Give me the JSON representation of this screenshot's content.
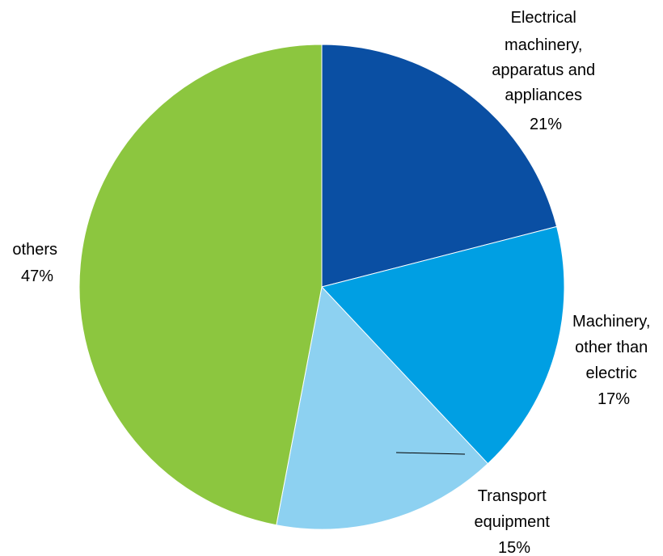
{
  "chart_data": {
    "type": "pie",
    "title": "",
    "start_angle_deg": 0,
    "direction": "clockwise",
    "slices": [
      {
        "label": [
          "Electrical",
          "machinery,",
          "apparatus and",
          "appliances"
        ],
        "value": 21,
        "value_label": "21%",
        "color": "#0A4FA3"
      },
      {
        "label": [
          "Machinery,",
          "other than",
          "electric"
        ],
        "value": 17,
        "value_label": "17%",
        "color": "#009FE3"
      },
      {
        "label": [
          "Transport",
          "equipment"
        ],
        "value": 15,
        "value_label": "15%",
        "color": "#8DD1F1"
      },
      {
        "label": [
          "others"
        ],
        "value": 47,
        "value_label": "47%",
        "color": "#8CC63F"
      }
    ],
    "legend": "none",
    "data_labels": "outside"
  }
}
